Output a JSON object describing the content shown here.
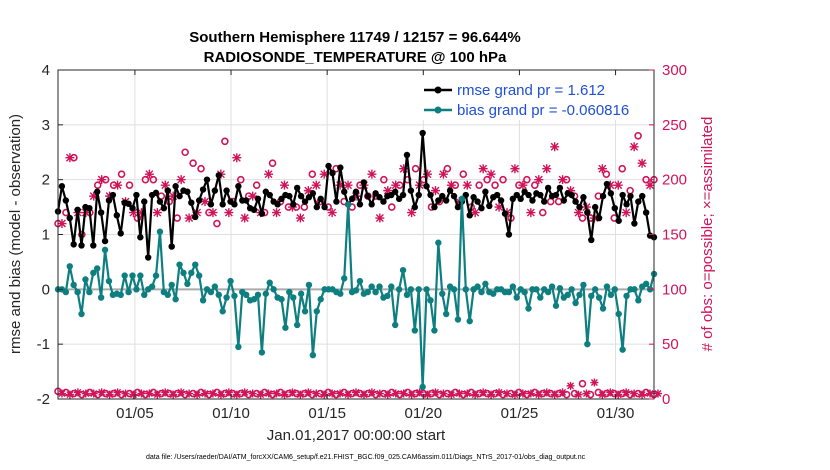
{
  "chart_data": {
    "type": "line",
    "title": "Southern Hemisphere 11749 / 12157 = 96.644%",
    "subtitle": "RADIOSONDE_TEMPERATURE @ 100 hPa",
    "xlabel": "Jan.01,2017 00:00:00 start",
    "ylabel": "rmse and bias (model - observation)",
    "ylabel_right": "# of obs: o=possible; ×=assimilated",
    "footer": "data file: /Users/raeder/DAI/ATM_forcXX/CAM6_setup/f.e21.FHIST_BGC.f09_025.CAM6assim.011/Diags_NTrS_2017-01/obs_diag_output.nc",
    "x_ticks": [
      "01/05",
      "01/10",
      "01/15",
      "01/20",
      "01/25",
      "01/30"
    ],
    "x_tick_days": [
      5,
      10,
      15,
      20,
      25,
      30
    ],
    "xlim": [
      1,
      32
    ],
    "ylim": [
      -2,
      4
    ],
    "y_ticks": [
      "-2",
      "-1",
      "0",
      "1",
      "2",
      "3",
      "4"
    ],
    "ylim_right": [
      0,
      300
    ],
    "y_ticks_right": [
      "0",
      "50",
      "100",
      "150",
      "200",
      "250",
      "300"
    ],
    "grid": true,
    "legend_position": "top-right",
    "colors": {
      "rmse": "#000000",
      "bias": "#0e7f80",
      "obs": "#d0145a",
      "zero": "#aaaaaa"
    },
    "series": [
      {
        "name": "rmse grand pr = 1.612",
        "values": [
          1.42,
          1.88,
          1.62,
          1.3,
          0.82,
          1.45,
          0.8,
          1.5,
          1.48,
          0.8,
          1.78,
          1.4,
          0.88,
          1.62,
          1.72,
          1.35,
          1.02,
          1.58,
          1.56,
          1.48,
          1.72,
          0.95,
          1.6,
          0.58,
          1.72,
          1.76,
          1.6,
          1.48,
          1.8,
          0.78,
          1.88,
          1.7,
          1.8,
          1.78,
          1.58,
          1.32,
          1.62,
          1.82,
          2.0,
          1.55,
          1.8,
          2.08,
          1.55,
          1.8,
          1.6,
          1.55,
          1.88,
          1.62,
          1.62,
          1.48,
          1.45,
          1.65,
          1.38,
          1.78,
          1.72,
          1.6,
          1.55,
          1.65,
          1.72,
          1.7,
          1.55,
          1.85,
          1.7,
          1.6,
          1.68,
          1.75,
          1.5,
          1.65,
          1.5,
          2.25,
          2.12,
          1.6,
          2.22,
          1.78,
          1.55,
          1.65,
          1.78,
          1.55,
          1.95,
          1.7,
          1.55,
          1.75,
          1.68,
          1.6,
          1.7,
          1.72,
          1.78,
          1.65,
          1.72,
          2.45,
          1.8,
          1.5,
          1.72,
          2.85,
          1.88,
          1.72,
          1.5,
          1.62,
          1.7,
          1.62,
          1.8,
          1.7,
          1.5,
          1.6,
          1.72,
          1.35,
          1.68,
          1.6,
          1.48,
          1.78,
          1.52,
          1.68,
          1.72,
          1.62,
          1.38,
          1.0,
          1.65,
          1.72,
          1.65,
          1.78,
          1.72,
          1.62,
          1.75,
          1.72,
          1.6,
          1.85,
          1.7,
          1.72,
          1.85,
          1.62,
          1.75,
          1.72,
          1.6,
          1.5,
          1.68,
          1.4,
          0.9,
          1.5,
          1.3,
          1.7,
          1.92,
          1.75,
          1.48,
          1.25,
          1.72,
          1.55,
          1.7,
          1.2,
          1.6,
          1.7,
          1.4,
          0.98,
          0.95
        ]
      },
      {
        "name": "bias grand pr = -0.060816",
        "values": [
          0.0,
          0.0,
          -0.05,
          0.42,
          0.08,
          -0.05,
          -0.45,
          0.18,
          -0.05,
          0.3,
          0.38,
          -0.15,
          0.72,
          0.15,
          -0.1,
          -0.08,
          -0.1,
          0.25,
          -0.05,
          0.25,
          0.0,
          0.25,
          -0.1,
          0.0,
          0.05,
          0.25,
          1.05,
          -0.05,
          -0.1,
          0.08,
          -0.18,
          0.45,
          0.3,
          0.1,
          0.3,
          0.45,
          0.25,
          -0.2,
          0.0,
          -0.05,
          0.05,
          -0.1,
          -0.4,
          -0.15,
          0.15,
          -0.12,
          -1.05,
          -0.05,
          -0.1,
          -0.2,
          -0.18,
          -0.1,
          -1.15,
          -0.08,
          0.12,
          0.0,
          -0.15,
          -0.18,
          -0.7,
          -0.05,
          -0.15,
          -0.65,
          -0.08,
          -0.4,
          0.08,
          -1.2,
          -0.4,
          -0.18,
          0.0,
          0.0,
          0.0,
          -0.05,
          -0.08,
          0.2,
          1.55,
          -0.05,
          -0.02,
          0.15,
          -0.08,
          -0.05,
          0.05,
          -0.05,
          0.05,
          -0.15,
          -0.12,
          0.05,
          -0.65,
          0.0,
          0.35,
          -0.1,
          0.0,
          -0.75,
          0.0,
          -1.78,
          0.0,
          -0.2,
          -0.75,
          0.85,
          -0.08,
          -0.45,
          0.05,
          0.0,
          -0.55,
          1.65,
          0.0,
          -0.58,
          0.0,
          0.05,
          -0.05,
          0.1,
          -0.05,
          -0.08,
          0.0,
          0.0,
          -0.05,
          -0.05,
          0.05,
          -0.15,
          0.0,
          -0.05,
          -0.35,
          0.0,
          0.0,
          -0.15,
          0.0,
          -0.05,
          0.05,
          -0.3,
          0.02,
          -0.15,
          -0.1,
          0.0,
          -0.25,
          -0.1,
          0.08,
          -1.0,
          -0.12,
          0.0,
          -0.15,
          -0.35,
          0.05,
          -0.1,
          0.0,
          -0.45,
          -1.1,
          -0.12,
          0.0,
          0.0,
          -0.2,
          0.05,
          0.1,
          0.0,
          0.28
        ]
      }
    ],
    "obs_possible": [
      160,
      165,
      170,
      225,
      220,
      175,
      150,
      175,
      170,
      190,
      195,
      205,
      200,
      190,
      195,
      200,
      205,
      185,
      195,
      175,
      165,
      175,
      200,
      210,
      200,
      175,
      185,
      200,
      180,
      190,
      165,
      205,
      225,
      170,
      215,
      175,
      210,
      185,
      170,
      175,
      160,
      210,
      235,
      175,
      180,
      225,
      200,
      170,
      185,
      190,
      195,
      175,
      170,
      210,
      215,
      175,
      180,
      200,
      175,
      180,
      175,
      170,
      175,
      195,
      205,
      200,
      180,
      210,
      175,
      175,
      210,
      200,
      180,
      200,
      175,
      190,
      195,
      200,
      185,
      210,
      185,
      170,
      200,
      195,
      175,
      200,
      195,
      215,
      200,
      175,
      210,
      200,
      200,
      210,
      175,
      195,
      180,
      210,
      210,
      200,
      195,
      185,
      205,
      200,
      175,
      175,
      195,
      215,
      200,
      210,
      195,
      180,
      200,
      175,
      165,
      215,
      195,
      200,
      200,
      175,
      195,
      205,
      170,
      215,
      180,
      235,
      180,
      205,
      200,
      195,
      185,
      175,
      165,
      180,
      165,
      170,
      185,
      215,
      205,
      200,
      165,
      200,
      210,
      175,
      190,
      235,
      240,
      220,
      200,
      200,
      200
    ],
    "obs_assimilated": [
      155,
      160,
      165,
      220,
      215,
      170,
      145,
      170,
      165,
      185,
      190,
      200,
      195,
      185,
      190,
      195,
      200,
      180,
      190,
      170,
      160,
      170,
      195,
      205,
      195,
      170,
      180,
      195,
      175,
      185,
      160,
      200,
      220,
      165,
      210,
      170,
      205,
      180,
      165,
      170,
      155,
      205,
      230,
      170,
      175,
      220,
      195,
      165,
      180,
      185,
      190,
      170,
      165,
      205,
      210,
      170,
      175,
      195,
      170,
      175,
      170,
      165,
      170,
      190,
      200,
      195,
      175,
      205,
      170,
      170,
      205,
      195,
      175,
      195,
      170,
      185,
      190,
      195,
      180,
      205,
      180,
      165,
      195,
      190,
      170,
      195,
      190,
      210,
      195,
      170,
      205,
      195,
      195,
      205,
      170,
      190,
      175,
      205,
      205,
      195,
      190,
      180,
      200,
      195,
      170,
      170,
      190,
      210,
      195,
      205,
      190,
      175,
      195,
      170,
      160,
      210,
      190,
      195,
      195,
      170,
      190,
      200,
      165,
      210,
      175,
      230,
      175,
      200,
      195,
      190,
      180,
      170,
      160,
      175,
      160,
      165,
      180,
      210,
      200,
      195,
      160,
      195,
      205,
      170,
      185,
      230,
      235,
      215,
      195,
      195,
      195
    ],
    "obs_counts_possible_baseline": [
      7,
      5,
      6,
      4,
      5,
      6,
      4,
      5,
      6,
      5,
      4,
      6,
      5,
      4,
      5,
      6,
      4,
      5,
      5,
      4,
      6,
      5,
      4,
      5,
      6,
      4,
      5,
      6,
      5,
      4,
      5,
      6,
      4,
      5,
      5,
      4,
      6,
      5,
      4,
      5,
      6,
      4,
      5,
      6,
      5,
      4,
      5,
      6,
      4,
      5,
      5,
      4,
      6,
      5,
      4,
      5,
      6,
      4,
      5,
      6,
      5,
      4,
      5,
      6,
      4,
      5,
      5,
      4,
      6,
      5,
      4,
      5,
      6,
      4,
      5,
      6,
      5,
      4,
      5,
      6,
      4,
      5,
      5,
      4,
      6,
      5,
      4,
      5,
      6,
      4,
      5,
      6,
      5,
      4,
      5,
      6,
      4,
      5,
      5,
      4,
      6,
      5,
      4,
      5,
      6,
      4,
      5,
      6,
      5,
      4,
      5,
      6,
      4,
      5,
      5,
      4,
      6,
      5,
      4,
      5,
      6,
      4,
      5,
      6,
      5,
      4,
      5,
      6,
      4,
      12,
      5,
      4,
      14,
      5,
      4,
      15,
      6,
      4,
      5,
      6,
      5,
      4,
      5,
      6,
      4,
      5,
      5,
      4,
      6,
      5,
      4,
      5
    ]
  }
}
